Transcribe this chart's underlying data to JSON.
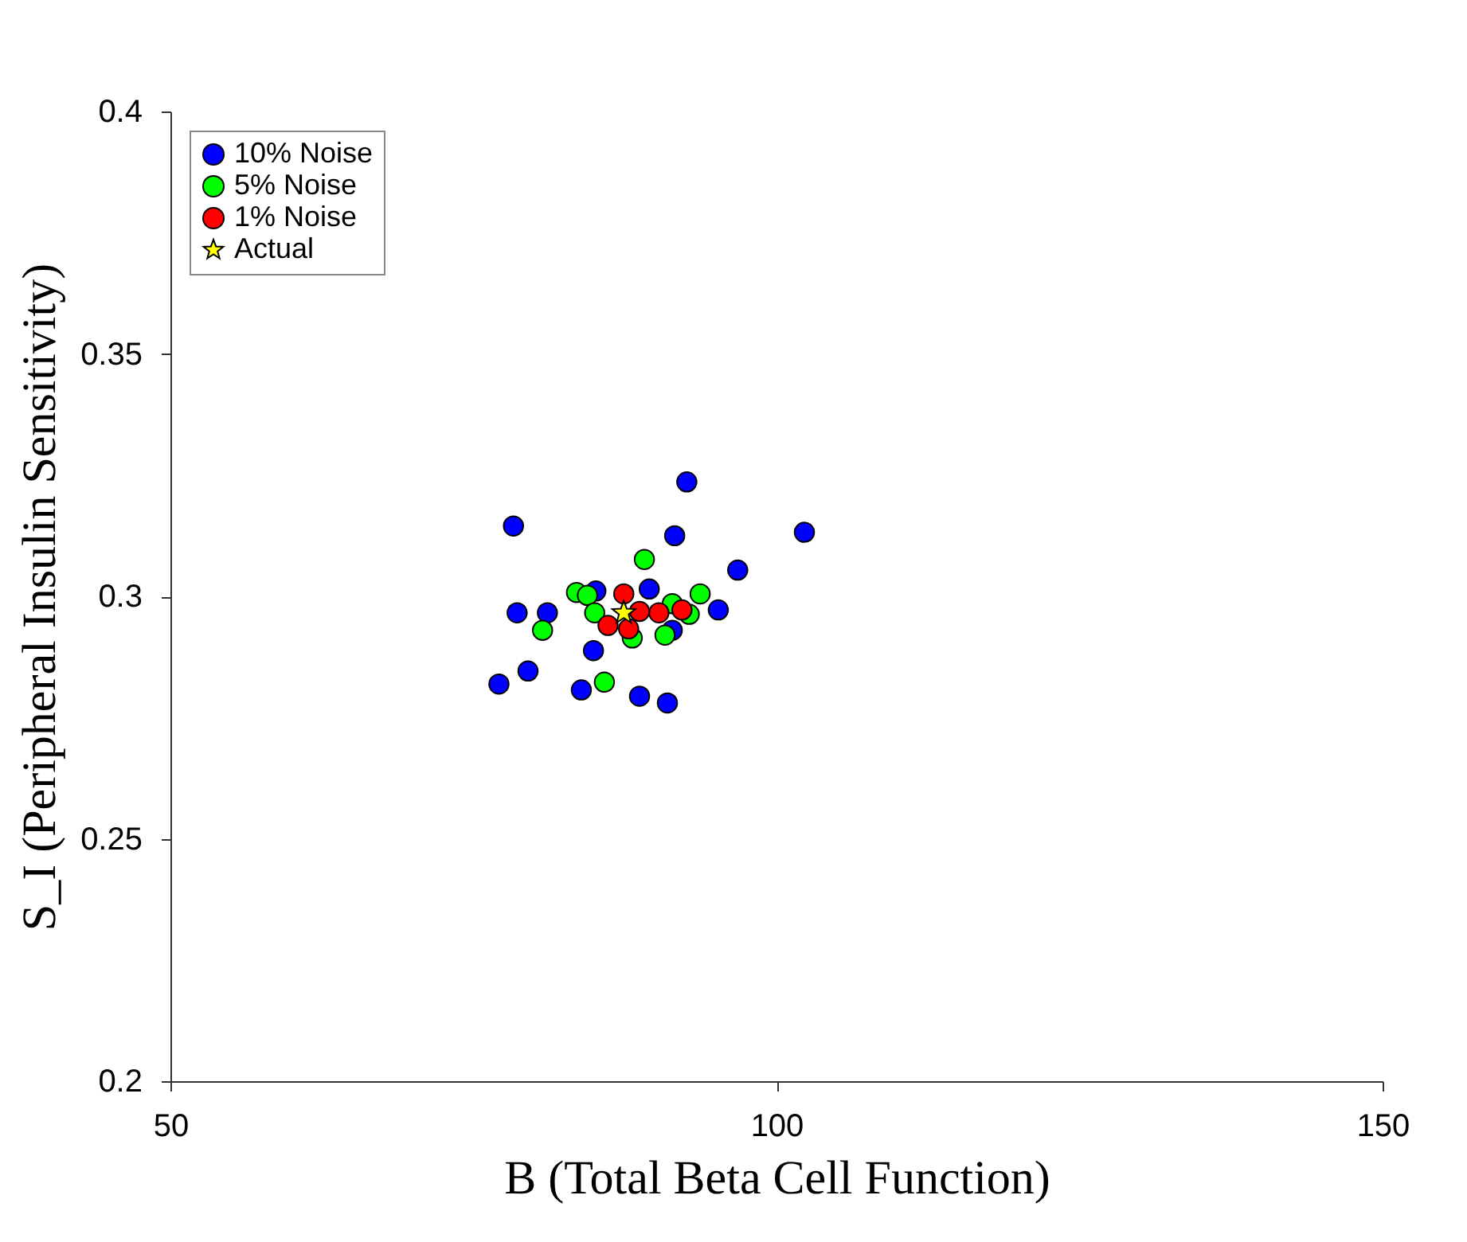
{
  "chart_data": {
    "type": "scatter",
    "xlabel": "B (Total Beta Cell Function)",
    "ylabel": "S_I (Peripheral Insulin Sensitivity)",
    "xlim": [
      50,
      150
    ],
    "xticks": [
      50,
      100,
      150
    ],
    "ylim": [
      0.2,
      0.4
    ],
    "yticks": [
      0.2,
      0.25,
      0.3,
      0.35,
      0.4
    ],
    "grid": false,
    "legend": "top left",
    "series": [
      {
        "name": "10% Noise",
        "color": "#0000ff",
        "marker": "circle",
        "x": [
          92.6,
          78.3,
          102.3,
          91.6,
          96.8,
          85.1,
          89.5,
          95.2,
          78.6,
          81.1,
          84.9,
          77.1,
          79.5,
          83.9,
          88.7,
          91.0,
          91.4
        ],
        "values": [
          0.3236,
          0.3145,
          0.3132,
          0.3125,
          0.3054,
          0.3011,
          0.3015,
          0.2972,
          0.2966,
          0.2966,
          0.2888,
          0.2819,
          0.2846,
          0.2807,
          0.2794,
          0.278,
          0.293
        ]
      },
      {
        "name": "5% Noise",
        "color": "#00ff00",
        "marker": "circle",
        "x": [
          89.1,
          83.5,
          84.4,
          93.7,
          85.0,
          80.7,
          91.4,
          92.8,
          90.8,
          88.1,
          85.8
        ],
        "values": [
          0.3076,
          0.3008,
          0.3002,
          0.3005,
          0.2966,
          0.293,
          0.2985,
          0.2963,
          0.292,
          0.2914,
          0.2823
        ]
      },
      {
        "name": "1% Noise",
        "color": "#ff0000",
        "marker": "circle",
        "x": [
          87.4,
          90.3,
          92.2,
          86.1,
          87.8,
          88.7
        ],
        "values": [
          0.3005,
          0.2966,
          0.2972,
          0.294,
          0.2933,
          0.2969
        ]
      },
      {
        "name": "Actual",
        "color": "#ffff00",
        "marker": "star",
        "x": [
          87.4
        ],
        "values": [
          0.2966
        ]
      }
    ]
  }
}
